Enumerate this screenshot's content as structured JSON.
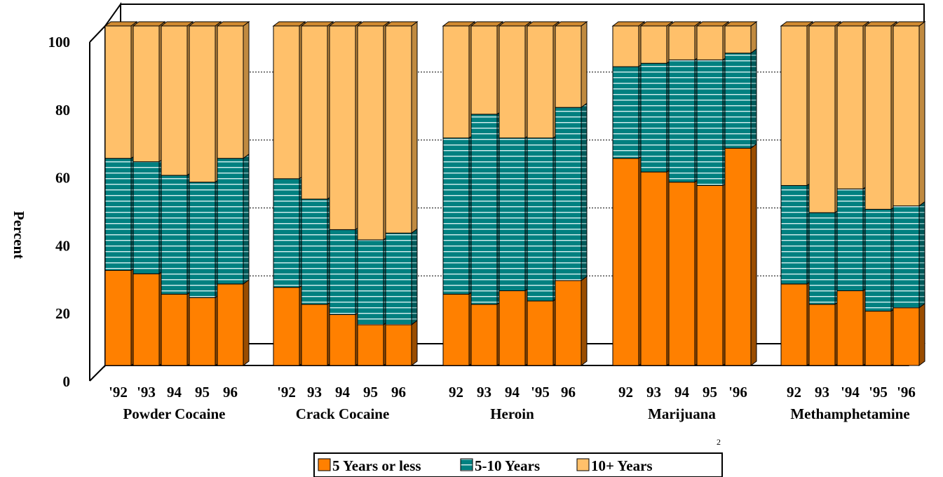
{
  "chart_data": {
    "type": "bar",
    "stacked": true,
    "three_d": true,
    "ylabel": "Percent",
    "xlabel": "",
    "ylim": [
      0,
      100
    ],
    "y_ticks": [
      "0",
      "20",
      "40",
      "60",
      "80",
      "100"
    ],
    "grid": true,
    "legend_position": "bottom",
    "note": "2",
    "series": [
      {
        "name": "5 Years or less",
        "color": "#FF8000",
        "pattern": "solid"
      },
      {
        "name": "5-10 Years",
        "color": "#008080",
        "pattern": "horizontal-stripes"
      },
      {
        "name": "10+ Years",
        "color": "#FFC06A",
        "pattern": "solid"
      }
    ],
    "groups": [
      {
        "name": "Powder Cocaine",
        "bars": [
          {
            "label": "'92",
            "values": [
              28,
              33,
              39
            ]
          },
          {
            "label": "'93",
            "values": [
              27,
              33,
              40
            ]
          },
          {
            "label": "94",
            "values": [
              21,
              35,
              44
            ]
          },
          {
            "label": "95",
            "values": [
              20,
              34,
              46
            ]
          },
          {
            "label": "96",
            "values": [
              24,
              37,
              39
            ]
          }
        ]
      },
      {
        "name": "Crack Cocaine",
        "bars": [
          {
            "label": "'92",
            "values": [
              23,
              32,
              45
            ]
          },
          {
            "label": "93",
            "values": [
              18,
              31,
              51
            ]
          },
          {
            "label": "94",
            "values": [
              15,
              25,
              60
            ]
          },
          {
            "label": "95",
            "values": [
              12,
              25,
              63
            ]
          },
          {
            "label": "96",
            "values": [
              12,
              27,
              61
            ]
          }
        ]
      },
      {
        "name": "Heroin",
        "bars": [
          {
            "label": "92",
            "values": [
              21,
              46,
              33
            ]
          },
          {
            "label": "93",
            "values": [
              18,
              56,
              26
            ]
          },
          {
            "label": "94",
            "values": [
              22,
              45,
              33
            ]
          },
          {
            "label": "'95",
            "values": [
              19,
              48,
              33
            ]
          },
          {
            "label": "96",
            "values": [
              25,
              51,
              24
            ]
          }
        ]
      },
      {
        "name": "Marijuana",
        "bars": [
          {
            "label": "92",
            "values": [
              61,
              27,
              12
            ]
          },
          {
            "label": "93",
            "values": [
              57,
              32,
              11
            ]
          },
          {
            "label": "94",
            "values": [
              54,
              36,
              10
            ]
          },
          {
            "label": "95",
            "values": [
              53,
              37,
              10
            ]
          },
          {
            "label": "'96",
            "values": [
              64,
              28,
              8
            ]
          }
        ]
      },
      {
        "name": "Methamphetamine",
        "bars": [
          {
            "label": "92",
            "values": [
              24,
              29,
              47
            ]
          },
          {
            "label": "93",
            "values": [
              18,
              27,
              55
            ]
          },
          {
            "label": "'94",
            "values": [
              22,
              30,
              48
            ]
          },
          {
            "label": "'95",
            "values": [
              16,
              30,
              54
            ]
          },
          {
            "label": "'96",
            "values": [
              17,
              30,
              53
            ]
          }
        ]
      }
    ]
  }
}
